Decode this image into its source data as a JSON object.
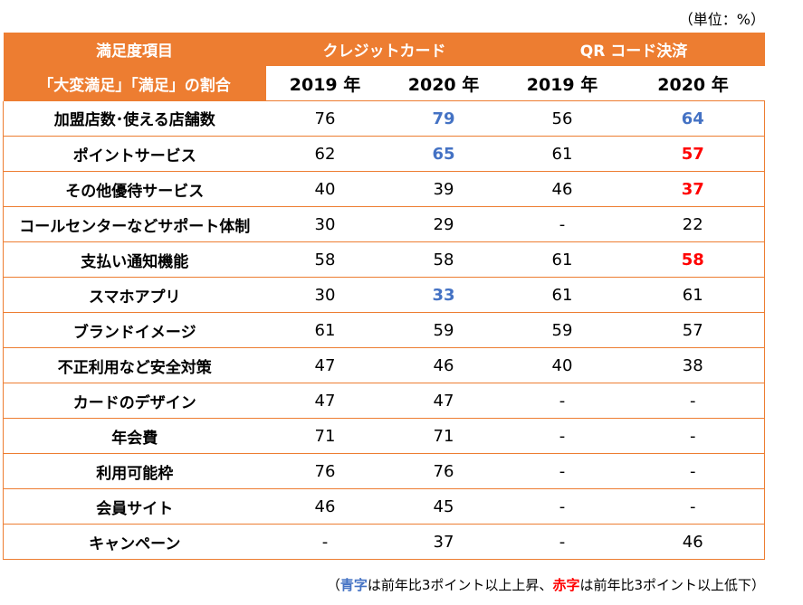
{
  "unit_label": "（単位：%）",
  "header": {
    "item_label": "満足度項目",
    "ratio_label": "「大変満足」「満足」の割合",
    "credit_card": "クレジットカード",
    "qr": "QR コード決済",
    "years": [
      "2019 年",
      "2020 年",
      "2019 年",
      "2020 年"
    ]
  },
  "rows": [
    {
      "label": "加盟店数･使える店舗数",
      "values": [
        "76",
        "79",
        "56",
        "64"
      ],
      "styles": [
        "",
        "blue",
        "",
        "blue"
      ]
    },
    {
      "label": "ポイントサービス",
      "values": [
        "62",
        "65",
        "61",
        "57"
      ],
      "styles": [
        "",
        "blue",
        "",
        "red"
      ]
    },
    {
      "label": "その他優待サービス",
      "values": [
        "40",
        "39",
        "46",
        "37"
      ],
      "styles": [
        "",
        "",
        "",
        "red"
      ]
    },
    {
      "label": "コールセンターなどサポート体制",
      "values": [
        "30",
        "29",
        "-",
        "22"
      ],
      "styles": [
        "",
        "",
        "",
        ""
      ]
    },
    {
      "label": "支払い通知機能",
      "values": [
        "58",
        "58",
        "61",
        "58"
      ],
      "styles": [
        "",
        "",
        "",
        "red"
      ]
    },
    {
      "label": "スマホアプリ",
      "values": [
        "30",
        "33",
        "61",
        "61"
      ],
      "styles": [
        "",
        "blue",
        "",
        ""
      ]
    },
    {
      "label": "ブランドイメージ",
      "values": [
        "61",
        "59",
        "59",
        "57"
      ],
      "styles": [
        "",
        "",
        "",
        ""
      ]
    },
    {
      "label": "不正利用など安全対策",
      "values": [
        "47",
        "46",
        "40",
        "38"
      ],
      "styles": [
        "",
        "",
        "",
        ""
      ]
    },
    {
      "label": "カードのデザイン",
      "values": [
        "47",
        "47",
        "-",
        "-"
      ],
      "styles": [
        "",
        "",
        "",
        ""
      ]
    },
    {
      "label": "年会費",
      "values": [
        "71",
        "71",
        "-",
        "-"
      ],
      "styles": [
        "",
        "",
        "",
        ""
      ]
    },
    {
      "label": "利用可能枠",
      "values": [
        "76",
        "76",
        "-",
        "-"
      ],
      "styles": [
        "",
        "",
        "",
        ""
      ]
    },
    {
      "label": "会員サイト",
      "values": [
        "46",
        "45",
        "-",
        "-"
      ],
      "styles": [
        "",
        "",
        "",
        ""
      ]
    },
    {
      "label": "キャンペーン",
      "values": [
        "-",
        "37",
        "-",
        "46"
      ],
      "styles": [
        "",
        "",
        "",
        ""
      ]
    }
  ],
  "note": {
    "open": "（",
    "blue_word": "青字",
    "blue_text": "は前年比3ポイント以上上昇、",
    "red_word": "赤字",
    "red_text": "は前年比3ポイント以上低下）"
  },
  "colors": {
    "accent": "#ed7d31",
    "blue": "#4472c4",
    "red": "#ff0000"
  }
}
